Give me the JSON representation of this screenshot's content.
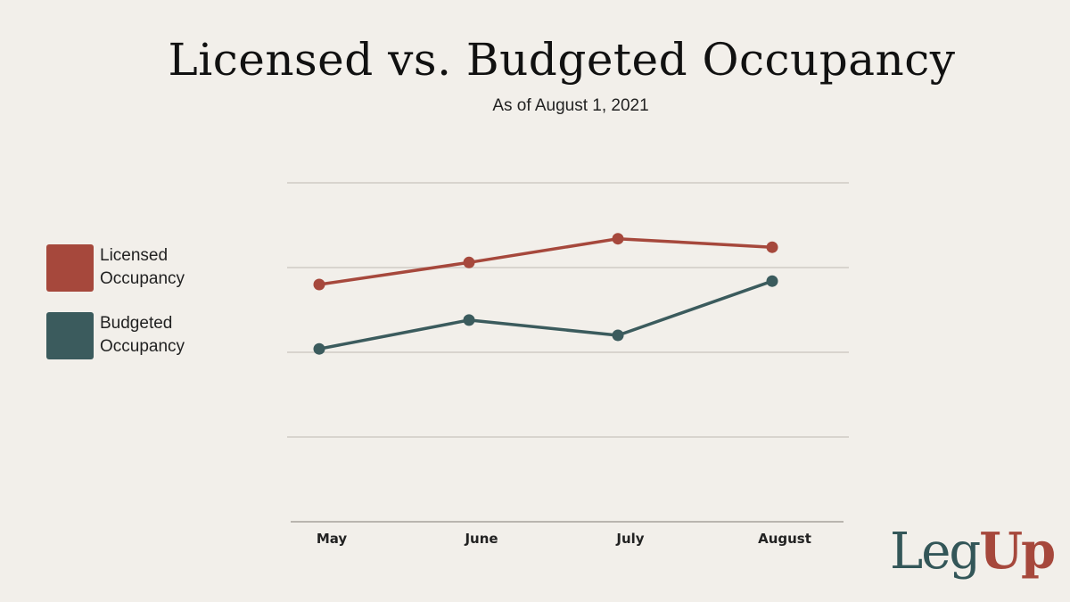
{
  "chart_data": {
    "type": "line",
    "title": "Licensed vs. Budgeted Occupancy",
    "subtitle": "As of August 1, 2021",
    "categories": [
      "May",
      "June",
      "July",
      "August"
    ],
    "series": [
      {
        "name": "Licensed Occupancy",
        "values": [
          74,
          75.3,
          76.7,
          76.2
        ],
        "color": "#a6483c"
      },
      {
        "name": "Budgeted Occupancy",
        "values": [
          70.2,
          71.9,
          71,
          74.2
        ],
        "color": "#3b5b5d"
      }
    ],
    "ylim": [
      60,
      80
    ],
    "grid": true,
    "legend_position": "left"
  },
  "legend_labels": [
    [
      "Licensed",
      "Occupancy"
    ],
    [
      "Budgeted",
      "Occupancy"
    ]
  ],
  "logo": {
    "part1": "Leg",
    "part2": "Up"
  }
}
